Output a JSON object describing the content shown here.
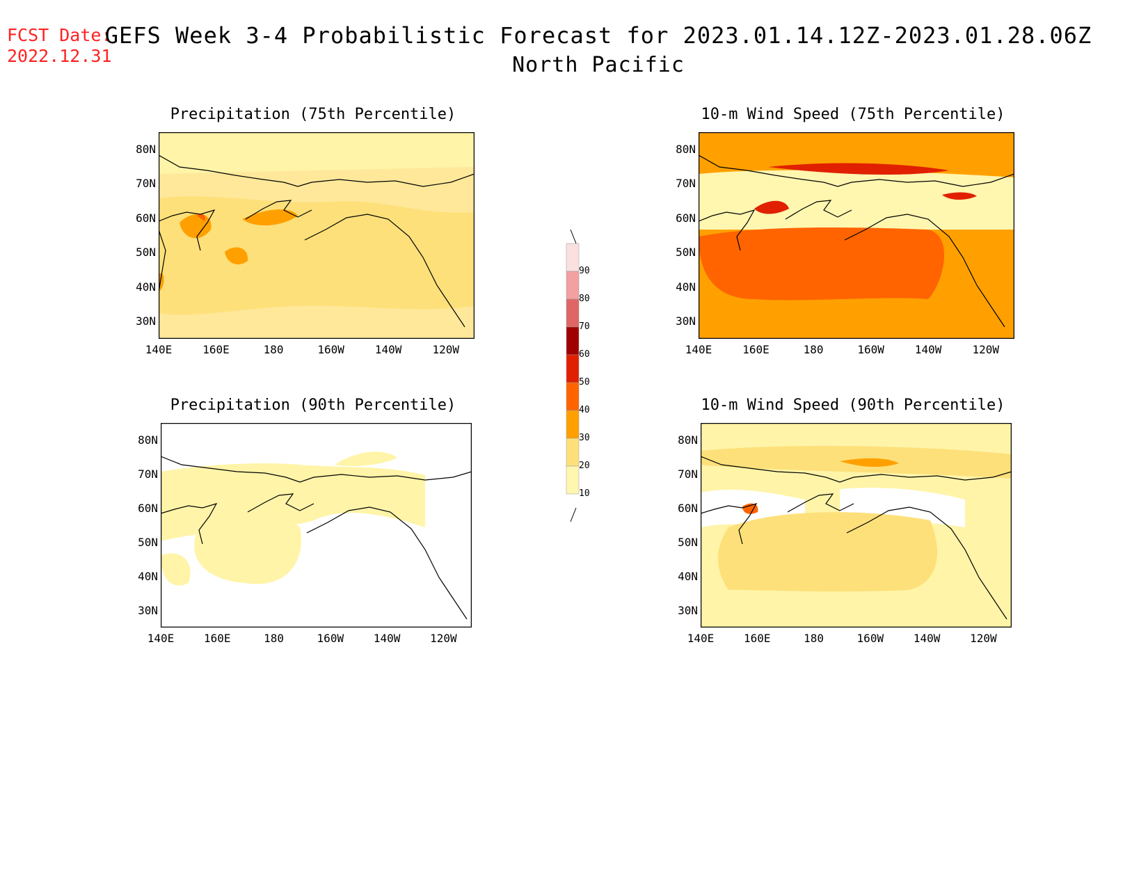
{
  "header": {
    "fcst_label": "FCST Date:",
    "fcst_date": "2022.12.31",
    "title": "GEFS Week 3-4 Probabilistic Forecast for 2023.01.14.12Z-2023.01.28.06Z",
    "region": "North Pacific"
  },
  "axes": {
    "lat_labels": [
      "80N",
      "70N",
      "60N",
      "50N",
      "40N",
      "30N"
    ],
    "lon_labels": [
      "140E",
      "160E",
      "180",
      "160W",
      "140W",
      "120W"
    ]
  },
  "panels": [
    {
      "title": "Precipitation (75th Percentile)"
    },
    {
      "title": "10-m Wind Speed (75th Percentile)"
    },
    {
      "title": "Precipitation (90th Percentile)"
    },
    {
      "title": "10-m Wind Speed (90th Percentile)"
    }
  ],
  "colorbar": {
    "labels": [
      "90",
      "80",
      "70",
      "60",
      "50",
      "40",
      "30",
      "20",
      "10"
    ],
    "colors": [
      "#fbe0e0",
      "#f2a0a0",
      "#e06666",
      "#a00000",
      "#e02000",
      "#ff6400",
      "#ffa000",
      "#fde07a",
      "#fff6b0"
    ]
  }
}
